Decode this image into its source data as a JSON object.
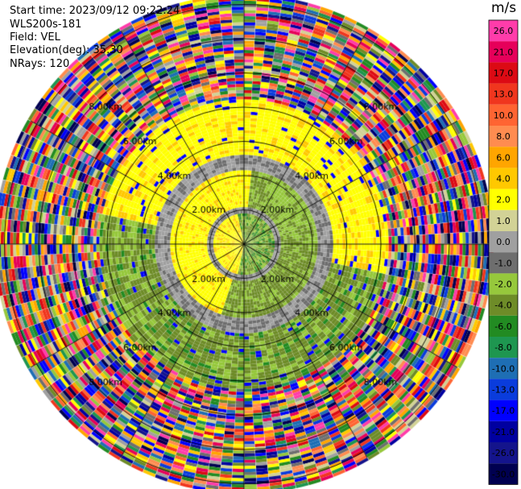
{
  "header": {
    "start_time": "Start time: 2023/09/12 09:22:24",
    "instrument": "WLS200s-181",
    "field": "Field: VEL",
    "elevation": "Elevation(deg): 35.30",
    "nrays": "NRays: 120"
  },
  "colorbar": {
    "unit": "m/s",
    "ticks": [
      "26.0",
      "21.0",
      "17.0",
      "13.0",
      "10.0",
      "8.0",
      "6.0",
      "4.0",
      "2.0",
      "1.0",
      "0.0",
      "-1.0",
      "-2.0",
      "-4.0",
      "-6.0",
      "-8.0",
      "-10.0",
      "-13.0",
      "-17.0",
      "-21.0",
      "-26.0",
      "-30.0"
    ],
    "colors": [
      "#ff3caa",
      "#e6005a",
      "#dc0a14",
      "#f0361e",
      "#ff6432",
      "#ff8c50",
      "#ffa500",
      "#ffc800",
      "#ffff00",
      "#d2d296",
      "#a0a0a0",
      "#6e6e6e",
      "#96c83c",
      "#6e8c28",
      "#228b22",
      "#1e9650",
      "#1e6eb4",
      "#0a3cdc",
      "#0000ff",
      "#0000a0",
      "#14148c",
      "#000050"
    ]
  },
  "chart_data": {
    "type": "heatmap",
    "subtype": "ppi-radial-velocity",
    "field": "VEL",
    "units": "m/s",
    "elevation_deg": 35.3,
    "n_rays": 120,
    "range_ring_labels": [
      "2.00km",
      "4.00km",
      "6.00km",
      "8.00km"
    ],
    "range_rings_km": [
      1,
      2,
      3,
      4,
      5,
      6,
      7
    ],
    "spokes_deg": [
      0,
      30,
      60,
      90,
      120,
      150,
      180,
      210,
      240,
      270,
      300,
      330
    ],
    "velocity_structure": [
      {
        "range_km": [
          0,
          1
        ],
        "pattern": "mixed near-zero, positive to west",
        "values_ms": [
          -2,
          0,
          2
        ]
      },
      {
        "range_km": [
          1,
          2.2
        ],
        "pattern": "positive (yellow) to north/west, negative (olive) to south/east",
        "values_ms": [
          2,
          0,
          -2
        ]
      },
      {
        "range_km": [
          2.2,
          4.2
        ],
        "pattern": "positive (yellow) north-east, negative (green/olive) south-west",
        "values_ms": [
          2,
          4,
          -2,
          -4
        ]
      },
      {
        "range_km": [
          4.2,
          7.2
        ],
        "pattern": "noise, all colors",
        "values_ms": [
          -30,
          26
        ]
      }
    ]
  }
}
